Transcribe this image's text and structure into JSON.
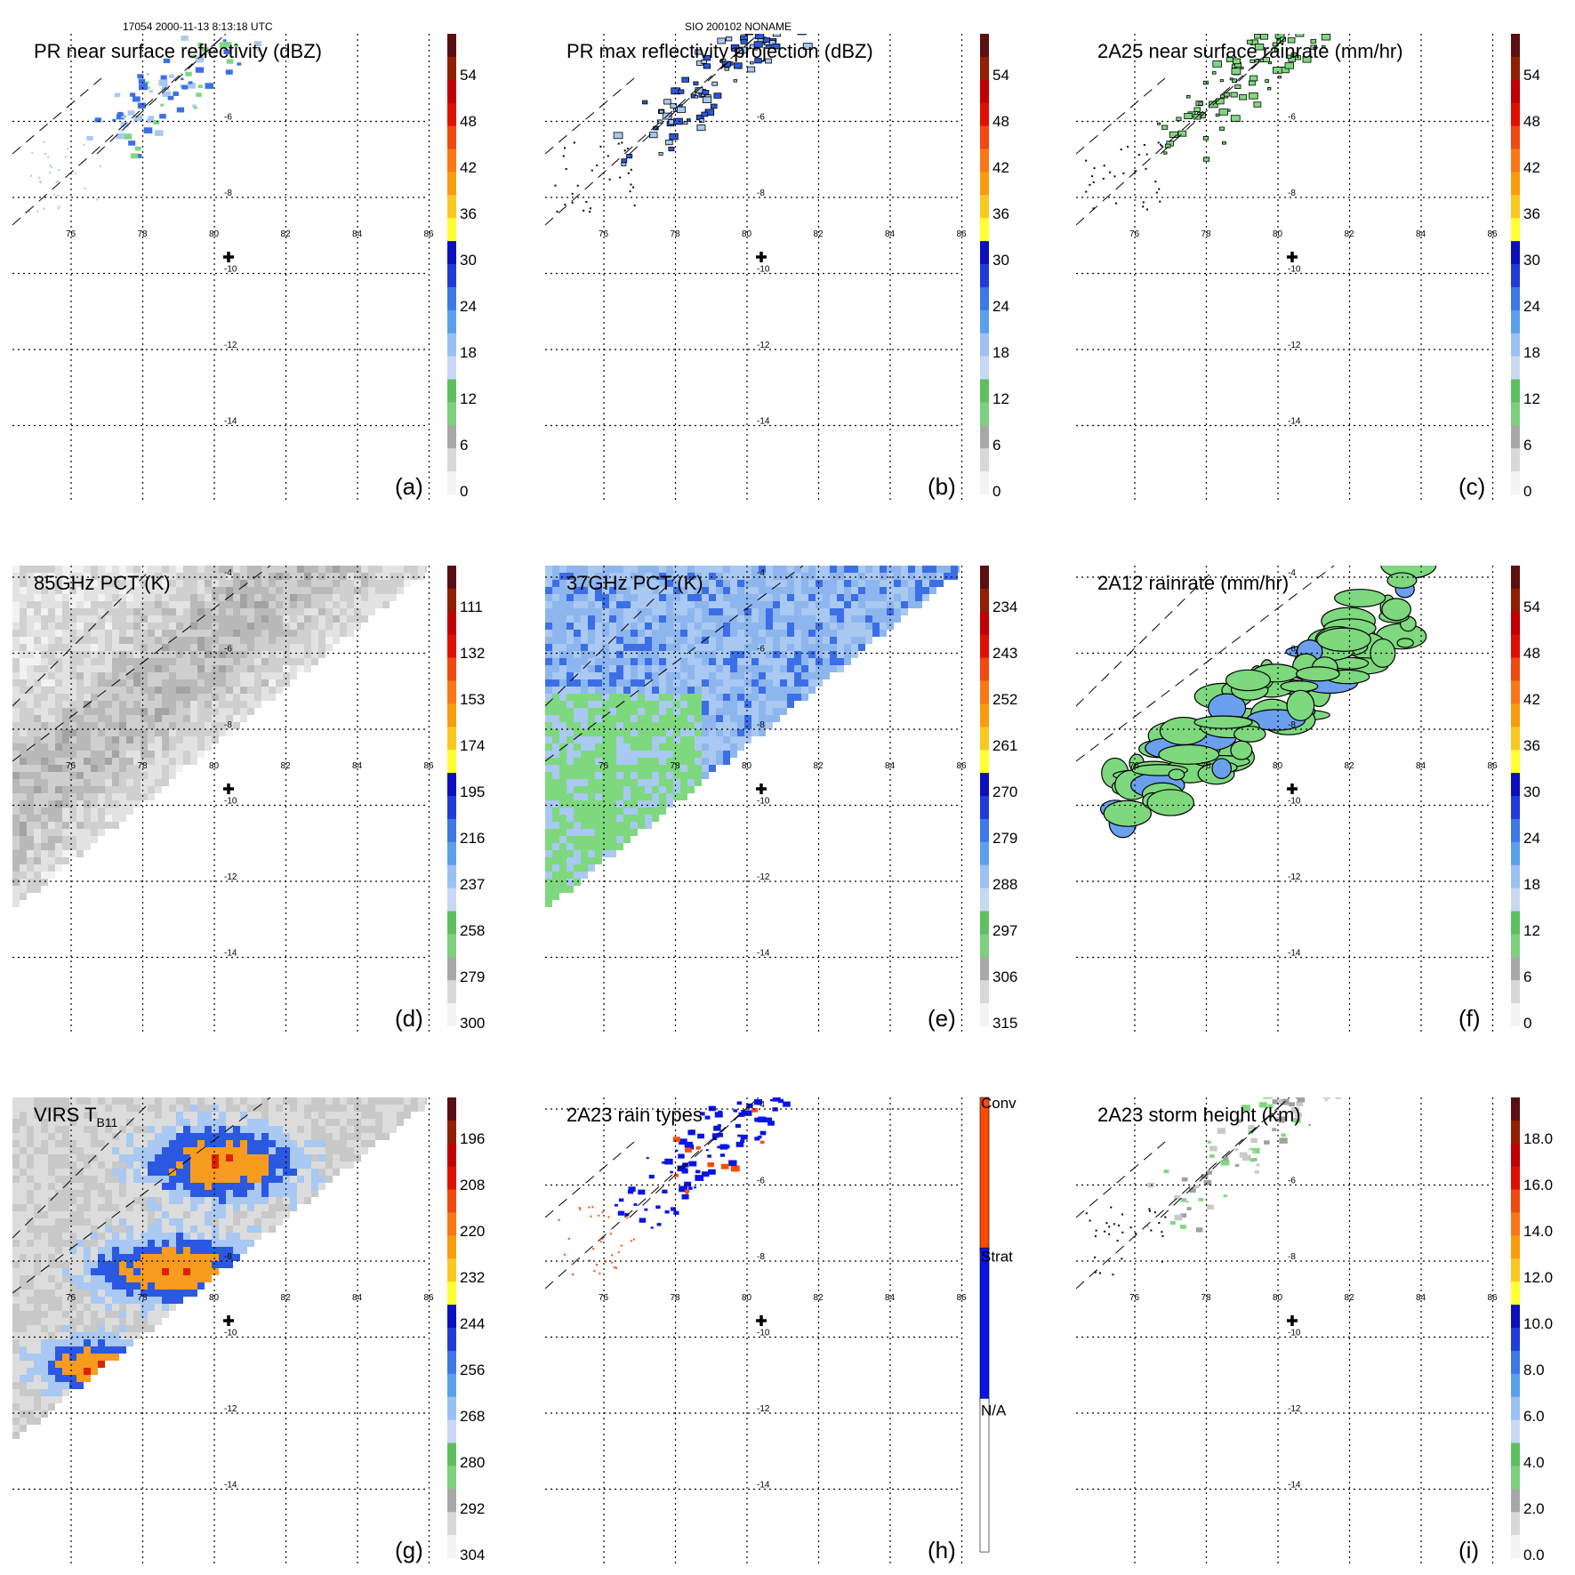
{
  "header": {
    "left": "17054 2000-11-13 8:13:18 UTC",
    "center": "SIO 200102 NONAME"
  },
  "colors": {
    "scale": [
      "#f4f4f4",
      "#d8d8d8",
      "#a8a8a8",
      "#7ecf7e",
      "#5fbf5f",
      "#c8d8f4",
      "#9cc0f4",
      "#5aa0ec",
      "#3c78e6",
      "#1f3cd8",
      "#0a10c0",
      "#ffff33",
      "#f8c820",
      "#f89c10",
      "#f87818",
      "#f04a10",
      "#e01000",
      "#c00000",
      "#902000",
      "#5a1010"
    ],
    "gray": [
      "#ffffff",
      "#f2f2f2",
      "#e2e2e2",
      "#cfcfcf",
      "#b9b9b9",
      "#a3a3a3",
      "#8c8c8c"
    ],
    "conv": "#ff4a00",
    "strat": "#0a14e6",
    "na": "#ffffff",
    "green": "#7ed87e",
    "lightblue": "#a9c8f2",
    "blue": "#3c6ee6",
    "orange": "#f89c20"
  },
  "icons": {
    "center": "plus-icon"
  },
  "chart_data": [
    {
      "id": "a",
      "type": "heatmap",
      "title": "PR near surface reflectivity (dBZ)",
      "letter": "(a)",
      "colorbar": {
        "ticks": [
          "54",
          "48",
          "42",
          "36",
          "30",
          "24",
          "18",
          "12",
          "6",
          "0"
        ]
      },
      "lon_ticks": [
        "76",
        "78",
        "80",
        "82",
        "84",
        "86"
      ],
      "lat_ticks": [
        "-6",
        "-8",
        "-10",
        "-12",
        "-14"
      ],
      "swath": "pr",
      "field": "pr_refl"
    },
    {
      "id": "b",
      "type": "heatmap",
      "title": "PR max reflectivity projection (dBZ)",
      "letter": "(b)",
      "colorbar": {
        "ticks": [
          "54",
          "48",
          "42",
          "36",
          "30",
          "24",
          "18",
          "12",
          "6",
          "0"
        ]
      },
      "lon_ticks": [
        "76",
        "78",
        "80",
        "82",
        "84",
        "86"
      ],
      "lat_ticks": [
        "-6",
        "-8",
        "-10",
        "-12",
        "-14"
      ],
      "swath": "pr",
      "field": "pr_max"
    },
    {
      "id": "c",
      "type": "heatmap",
      "title": "2A25 near surface rainrate (mm/hr)",
      "letter": "(c)",
      "colorbar": {
        "ticks": [
          "54",
          "48",
          "42",
          "36",
          "30",
          "24",
          "18",
          "12",
          "6",
          "0"
        ]
      },
      "lon_ticks": [
        "76",
        "78",
        "80",
        "82",
        "84",
        "86"
      ],
      "lat_ticks": [
        "-6",
        "-8",
        "-10",
        "-12",
        "-14"
      ],
      "swath": "pr",
      "field": "pr_rain"
    },
    {
      "id": "d",
      "type": "heatmap",
      "title": "85GHz PCT (K)",
      "letter": "(d)",
      "colorbar": {
        "ticks": [
          "111",
          "132",
          "153",
          "174",
          "195",
          "216",
          "237",
          "258",
          "279",
          "300"
        ]
      },
      "lon_ticks": [
        "76",
        "78",
        "80",
        "82",
        "84",
        "86"
      ],
      "lat_ticks": [
        "-4",
        "-6",
        "-8",
        "-10",
        "-12",
        "-14"
      ],
      "swath": "tmi",
      "field": "pct85"
    },
    {
      "id": "e",
      "type": "heatmap",
      "title": "37GHz PCT (K)",
      "letter": "(e)",
      "colorbar": {
        "ticks": [
          "234",
          "243",
          "252",
          "261",
          "270",
          "279",
          "288",
          "297",
          "306",
          "315"
        ]
      },
      "lon_ticks": [
        "76",
        "78",
        "80",
        "82",
        "84",
        "86"
      ],
      "lat_ticks": [
        "-4",
        "-6",
        "-8",
        "-10",
        "-12",
        "-14"
      ],
      "swath": "tmi",
      "field": "pct37"
    },
    {
      "id": "f",
      "type": "heatmap",
      "title": "2A12 rainrate (mm/hr)",
      "letter": "(f)",
      "colorbar": {
        "ticks": [
          "54",
          "48",
          "42",
          "36",
          "30",
          "24",
          "18",
          "12",
          "6",
          "0"
        ]
      },
      "lon_ticks": [
        "76",
        "78",
        "80",
        "82",
        "84",
        "86"
      ],
      "lat_ticks": [
        "-4",
        "-6",
        "-8",
        "-10",
        "-12",
        "-14"
      ],
      "swath": "tmi",
      "field": "tmi_rain"
    },
    {
      "id": "g",
      "type": "heatmap",
      "title": "VIRS T",
      "title_sub": "B11",
      "letter": "(g)",
      "colorbar": {
        "ticks": [
          "196",
          "208",
          "220",
          "232",
          "244",
          "256",
          "268",
          "280",
          "292",
          "304"
        ]
      },
      "lon_ticks": [
        "76",
        "78",
        "80",
        "82",
        "84",
        "86"
      ],
      "lat_ticks": [
        "-8",
        "-10",
        "-12",
        "-14"
      ],
      "swath": "tmi",
      "field": "virs"
    },
    {
      "id": "h",
      "type": "heatmap",
      "title": "2A23 rain types",
      "letter": "(h)",
      "colorbar": {
        "categories": [
          "Conv",
          "Strat",
          "N/A"
        ]
      },
      "lon_ticks": [
        "76",
        "78",
        "80",
        "82",
        "84",
        "86"
      ],
      "lat_ticks": [
        "-4",
        "-6",
        "-8",
        "-10",
        "-12",
        "-14"
      ],
      "swath": "pr",
      "field": "raintype"
    },
    {
      "id": "i",
      "type": "heatmap",
      "title": "2A23 storm height (km)",
      "letter": "(i)",
      "colorbar": {
        "ticks": [
          "18.0",
          "16.0",
          "14.0",
          "12.0",
          "10.0",
          "8.0",
          "6.0",
          "4.0",
          "2.0",
          "0.0"
        ]
      },
      "lon_ticks": [
        "76",
        "78",
        "80",
        "82",
        "84",
        "86"
      ],
      "lat_ticks": [
        "-6",
        "-8",
        "-10",
        "-12",
        "-14"
      ],
      "swath": "pr",
      "field": "height"
    }
  ]
}
